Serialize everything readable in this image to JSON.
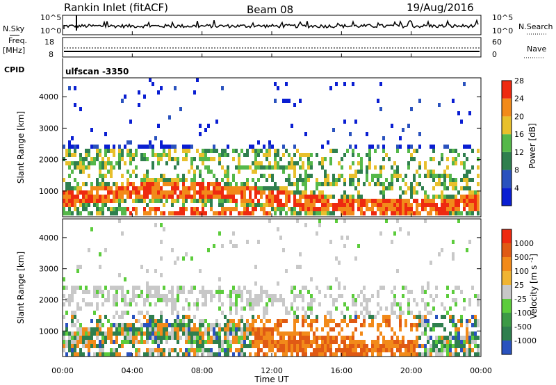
{
  "header": {
    "title": "Rankin Inlet (fitACF)",
    "beam": "Beam 08",
    "date": "19/Aug/2016"
  },
  "top_panels": {
    "nsky_label": "N.Sky",
    "nsky_ticks": [
      "10^5",
      "10^0"
    ],
    "nsearch_label": "N.Search",
    "nsearch_ticks": [
      "10^5",
      "10^0"
    ],
    "freq_label_line1": "Freq.",
    "freq_label_line2": "[MHz]",
    "freq_ticks": [
      "18",
      "8"
    ],
    "nave_label": "Nave",
    "nave_ticks": [
      "60",
      "0"
    ],
    "cpid_label": "CPID",
    "cpid_value": "ulfscan -3350"
  },
  "chart_data": [
    {
      "type": "heatmap",
      "panel": "power",
      "ylabel": "Slant Range [km]",
      "xlabel": "",
      "ylim": [
        180,
        4600
      ],
      "yticks": [
        1000,
        2000,
        3000,
        4000
      ],
      "xlim": [
        0,
        24
      ],
      "colorbar_label": "Power [dB]",
      "colorbar_ticks": [
        "4",
        "8",
        "12",
        "16",
        "20",
        "24",
        "28"
      ],
      "colorbar_colors": [
        "#0a1ed2",
        "#2a52be",
        "#2f7f4e",
        "#55b84a",
        "#e8c02c",
        "#f28a1a",
        "#ee2a10"
      ]
    },
    {
      "type": "heatmap",
      "panel": "velocity",
      "ylabel": "Slant Range [km]",
      "xlabel": "Time UT",
      "ylim": [
        180,
        4600
      ],
      "yticks": [
        1000,
        2000,
        3000,
        4000
      ],
      "xlim": [
        0,
        24
      ],
      "xticks": [
        "00:00",
        "04:00",
        "08:00",
        "12:00",
        "16:00",
        "20:00",
        "00:00"
      ],
      "colorbar_label": "Velocity [m s^-1]",
      "colorbar_ticks": [
        "1000",
        "500",
        "100",
        "25",
        "-25",
        "-100",
        "-500",
        "-1000"
      ],
      "colorbar_colors": [
        "#2a52be",
        "#2f7f4e",
        "#3c9a46",
        "#5ccc3c",
        "#c8c8c8",
        "#f0b432",
        "#f28a1a",
        "#e05a14",
        "#ee2a10"
      ]
    }
  ]
}
